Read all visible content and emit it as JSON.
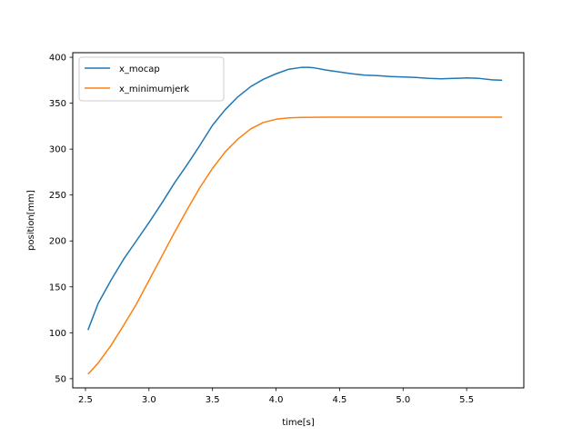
{
  "chart_data": {
    "type": "line",
    "title": "",
    "xlabel": "time[s]",
    "ylabel": "position[mm]",
    "xlim": [
      2.4,
      5.95
    ],
    "ylim": [
      40,
      405
    ],
    "xticks": [
      2.5,
      3.0,
      3.5,
      4.0,
      4.5,
      5.0,
      5.5
    ],
    "xtick_labels": [
      "2.5",
      "3.0",
      "3.5",
      "4.0",
      "4.5",
      "5.0",
      "5.5"
    ],
    "yticks": [
      50,
      100,
      150,
      200,
      250,
      300,
      350,
      400
    ],
    "ytick_labels": [
      "50",
      "100",
      "150",
      "200",
      "250",
      "300",
      "350",
      "400"
    ],
    "grid": false,
    "legend_position": "top-left",
    "series": [
      {
        "name": "x_mocap",
        "color": "#1f77b4",
        "x": [
          2.52,
          2.6,
          2.7,
          2.8,
          2.9,
          3.0,
          3.1,
          3.2,
          3.3,
          3.4,
          3.5,
          3.6,
          3.7,
          3.8,
          3.9,
          4.0,
          4.1,
          4.2,
          4.25,
          4.3,
          4.4,
          4.5,
          4.6,
          4.7,
          4.8,
          4.9,
          5.0,
          5.1,
          5.2,
          5.3,
          5.4,
          5.5,
          5.6,
          5.7,
          5.78
        ],
        "y": [
          103,
          132,
          157,
          180,
          200,
          220,
          241,
          263,
          283,
          304,
          326,
          343,
          357,
          368,
          376,
          382,
          387,
          389,
          389,
          388.5,
          386,
          384,
          382,
          380.5,
          380,
          379,
          378.5,
          378,
          377,
          376.5,
          377,
          377.5,
          377,
          375.5,
          375
        ]
      },
      {
        "name": "x_minimumjerk",
        "color": "#ff7f0e",
        "x": [
          2.52,
          2.6,
          2.7,
          2.8,
          2.9,
          3.0,
          3.1,
          3.2,
          3.3,
          3.4,
          3.5,
          3.6,
          3.7,
          3.8,
          3.9,
          4.0,
          4.1,
          4.2,
          4.3,
          4.4,
          4.6,
          4.8,
          5.0,
          5.2,
          5.4,
          5.6,
          5.78
        ],
        "y": [
          55,
          67,
          86,
          108,
          131,
          157,
          183,
          209,
          234,
          258,
          279,
          297,
          311,
          322,
          329,
          332.5,
          334,
          334.5,
          334.7,
          334.8,
          334.8,
          334.8,
          334.8,
          334.8,
          334.8,
          334.8,
          334.8
        ]
      }
    ]
  }
}
